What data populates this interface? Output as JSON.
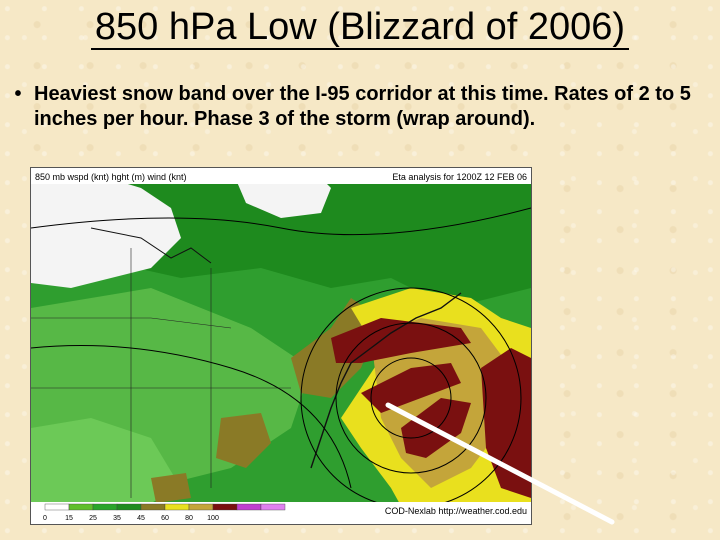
{
  "slide": {
    "title": "850 hPa Low (Blizzard of 2006)",
    "bullet": "Heaviest snow band over the I-95 corridor at this time. Rates of 2 to 5 inches per hour.  Phase 3 of the storm (wrap around)."
  },
  "map": {
    "header_left": "850 mb wspd (knt) hght (m) wind (knt)",
    "header_right": "Eta analysis for 1200Z 12 FEB 06",
    "credit": "COD-Nexlab http://weather.cod.edu",
    "colorbar_labels": [
      "0",
      "15",
      "25",
      "35",
      "45",
      "60",
      "80",
      "100"
    ],
    "colorbar_colors": [
      "#ffffff",
      "#5fbf2a",
      "#2aa52a",
      "#1f8c1f",
      "#8a7a26",
      "#e9e01e",
      "#c4a53a",
      "#7a1010",
      "#c03fd0",
      "#e080f0"
    ]
  }
}
